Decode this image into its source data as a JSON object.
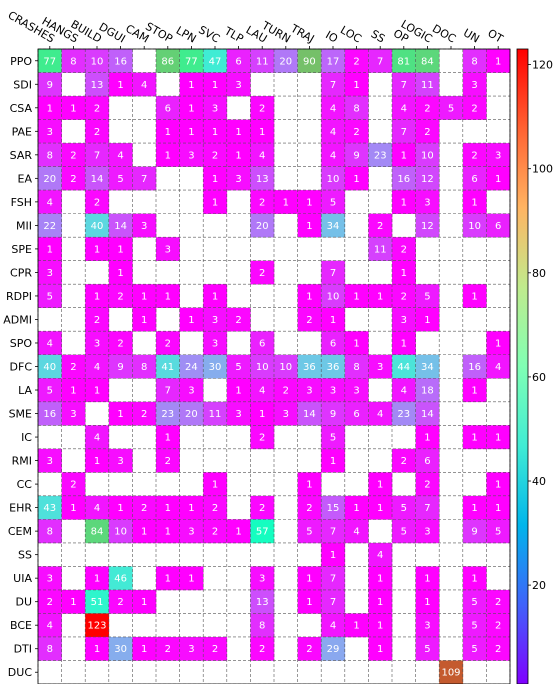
{
  "chart_data": {
    "type": "heatmap",
    "title": "",
    "xlabel": "",
    "ylabel": "",
    "columns": [
      "CRASHES",
      "HANGS",
      "BUILD",
      "DGUI",
      "CAM",
      "STOP",
      "LPN",
      "SVC",
      "TLP",
      "LAU",
      "TURN",
      "TRAJ",
      "IO",
      "LOC",
      "SS",
      "OP",
      "LOGIC",
      "DOC",
      "UN",
      "OT"
    ],
    "rows": [
      "PPO",
      "SDI",
      "CSA",
      "PAE",
      "SAR",
      "EA",
      "FSH",
      "MII",
      "SPE",
      "CPR",
      "RDPI",
      "ADMI",
      "SPO",
      "DFC",
      "LA",
      "SME",
      "IC",
      "RMI",
      "CC",
      "EHR",
      "CEM",
      "SS",
      "UIA",
      "DU",
      "BCE",
      "DTI",
      "DUC"
    ],
    "values": [
      [
        77,
        8,
        10,
        16,
        null,
        86,
        77,
        47,
        6,
        11,
        20,
        90,
        17,
        2,
        7,
        81,
        84,
        null,
        8,
        1
      ],
      [
        9,
        null,
        13,
        1,
        4,
        null,
        1,
        1,
        3,
        null,
        null,
        null,
        7,
        1,
        null,
        7,
        11,
        null,
        3,
        null
      ],
      [
        1,
        1,
        2,
        null,
        null,
        6,
        1,
        3,
        null,
        2,
        null,
        null,
        4,
        8,
        null,
        4,
        2,
        5,
        2,
        null
      ],
      [
        3,
        null,
        2,
        null,
        null,
        1,
        1,
        1,
        1,
        1,
        null,
        null,
        4,
        2,
        null,
        7,
        2,
        null,
        null,
        null
      ],
      [
        8,
        2,
        7,
        4,
        null,
        1,
        3,
        2,
        1,
        4,
        null,
        null,
        4,
        9,
        23,
        1,
        10,
        null,
        2,
        3
      ],
      [
        20,
        2,
        14,
        5,
        7,
        null,
        null,
        1,
        3,
        13,
        null,
        null,
        10,
        1,
        null,
        16,
        12,
        null,
        6,
        1
      ],
      [
        4,
        null,
        2,
        null,
        null,
        null,
        null,
        1,
        null,
        2,
        1,
        1,
        5,
        null,
        null,
        1,
        3,
        null,
        1,
        null
      ],
      [
        22,
        null,
        40,
        14,
        3,
        null,
        null,
        null,
        null,
        20,
        null,
        1,
        34,
        null,
        2,
        null,
        12,
        null,
        10,
        6
      ],
      [
        1,
        null,
        1,
        1,
        null,
        3,
        null,
        null,
        null,
        null,
        null,
        null,
        null,
        null,
        11,
        2,
        null,
        null,
        null,
        null
      ],
      [
        3,
        null,
        null,
        1,
        null,
        null,
        null,
        null,
        null,
        2,
        null,
        null,
        7,
        null,
        null,
        1,
        null,
        null,
        null,
        null
      ],
      [
        5,
        null,
        1,
        2,
        1,
        1,
        null,
        1,
        null,
        null,
        null,
        1,
        10,
        1,
        1,
        2,
        5,
        null,
        1,
        null
      ],
      [
        null,
        null,
        2,
        null,
        1,
        null,
        1,
        3,
        2,
        null,
        null,
        2,
        1,
        null,
        null,
        3,
        1,
        null,
        null,
        null
      ],
      [
        4,
        null,
        3,
        2,
        null,
        2,
        null,
        3,
        null,
        6,
        null,
        null,
        6,
        1,
        null,
        1,
        null,
        null,
        null,
        1
      ],
      [
        40,
        2,
        4,
        9,
        8,
        41,
        24,
        30,
        5,
        10,
        10,
        36,
        36,
        8,
        3,
        44,
        34,
        null,
        16,
        4
      ],
      [
        5,
        1,
        1,
        null,
        null,
        7,
        3,
        null,
        1,
        4,
        2,
        3,
        3,
        3,
        null,
        4,
        18,
        null,
        1,
        null
      ],
      [
        16,
        3,
        null,
        1,
        2,
        23,
        20,
        11,
        3,
        1,
        3,
        14,
        9,
        6,
        4,
        23,
        14,
        null,
        null,
        null
      ],
      [
        null,
        null,
        4,
        null,
        null,
        1,
        null,
        null,
        null,
        2,
        null,
        null,
        5,
        null,
        null,
        null,
        1,
        null,
        1,
        1
      ],
      [
        3,
        null,
        1,
        3,
        null,
        2,
        null,
        null,
        null,
        null,
        null,
        null,
        1,
        null,
        null,
        2,
        6,
        null,
        null,
        null
      ],
      [
        null,
        2,
        null,
        null,
        null,
        null,
        null,
        1,
        null,
        null,
        null,
        1,
        null,
        null,
        1,
        null,
        2,
        null,
        null,
        1
      ],
      [
        43,
        1,
        4,
        1,
        2,
        1,
        1,
        2,
        null,
        2,
        null,
        2,
        15,
        1,
        1,
        5,
        7,
        null,
        1,
        1
      ],
      [
        8,
        null,
        84,
        10,
        1,
        1,
        3,
        2,
        1,
        57,
        null,
        5,
        7,
        4,
        null,
        5,
        3,
        null,
        9,
        5
      ],
      [
        null,
        null,
        null,
        null,
        null,
        null,
        null,
        null,
        null,
        null,
        null,
        null,
        1,
        null,
        4,
        null,
        null,
        null,
        null,
        null
      ],
      [
        3,
        null,
        1,
        46,
        null,
        1,
        1,
        null,
        null,
        3,
        null,
        1,
        7,
        null,
        1,
        null,
        1,
        null,
        1,
        null
      ],
      [
        2,
        1,
        51,
        2,
        1,
        null,
        null,
        null,
        null,
        13,
        null,
        1,
        7,
        null,
        1,
        null,
        1,
        null,
        5,
        2
      ],
      [
        4,
        null,
        123,
        null,
        null,
        null,
        null,
        null,
        null,
        8,
        null,
        null,
        4,
        1,
        1,
        null,
        3,
        null,
        5,
        2
      ],
      [
        8,
        null,
        1,
        30,
        1,
        2,
        3,
        2,
        null,
        2,
        null,
        2,
        29,
        null,
        1,
        null,
        5,
        null,
        5,
        2
      ],
      [
        null,
        null,
        null,
        null,
        null,
        null,
        null,
        null,
        null,
        null,
        null,
        null,
        null,
        null,
        null,
        null,
        null,
        109,
        null,
        null
      ]
    ],
    "colorbar": {
      "min": 1,
      "max": 123,
      "ticks": [
        20,
        40,
        60,
        80,
        100,
        120
      ],
      "colormap": "rainbow"
    },
    "grid": true,
    "empty_cell_color": "#ffffff"
  }
}
